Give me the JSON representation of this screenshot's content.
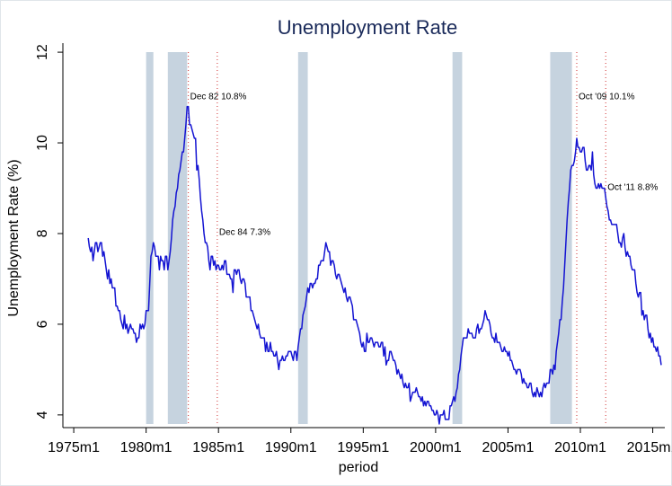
{
  "chart_data": {
    "type": "line",
    "title": "Unemployment Rate",
    "x_label": "period",
    "y_label": "Unemployment Rate (%)",
    "xlim": [
      171,
      670
    ],
    "ylim": [
      3.72,
      12.2
    ],
    "grid": false,
    "xticks": [
      {
        "value": 180,
        "label": "1975m1"
      },
      {
        "value": 240,
        "label": "1980m1"
      },
      {
        "value": 300,
        "label": "1985m1"
      },
      {
        "value": 360,
        "label": "1990m1"
      },
      {
        "value": 420,
        "label": "1995m1"
      },
      {
        "value": 480,
        "label": "2000m1"
      },
      {
        "value": 540,
        "label": "2005m1"
      },
      {
        "value": 600,
        "label": "2010m1"
      },
      {
        "value": 660,
        "label": "2015m1"
      }
    ],
    "yticks": [
      4,
      6,
      8,
      10,
      12
    ],
    "recessions": [
      [
        240,
        246
      ],
      [
        258,
        274
      ],
      [
        366,
        374
      ],
      [
        494,
        502
      ],
      [
        575,
        593
      ]
    ],
    "recession_color": "#c6d3df",
    "annotation_color": "#d03030",
    "annotations": [
      {
        "x": 275,
        "label": "Dec 82 10.8%"
      },
      {
        "x": 299,
        "label": "Dec 84 7.3%"
      },
      {
        "x": 597,
        "label": "Oct '09 10.1%"
      },
      {
        "x": 621,
        "label": "Oct '11 8.8%"
      }
    ],
    "x": [
      192,
      193,
      194,
      195,
      196,
      197,
      198,
      199,
      200,
      201,
      202,
      203,
      204,
      205,
      206,
      207,
      208,
      209,
      210,
      211,
      212,
      213,
      214,
      215,
      216,
      217,
      218,
      219,
      220,
      221,
      222,
      223,
      224,
      225,
      226,
      227,
      228,
      229,
      230,
      231,
      232,
      233,
      234,
      235,
      236,
      237,
      238,
      239,
      240,
      241,
      242,
      243,
      244,
      245,
      246,
      247,
      248,
      249,
      250,
      251,
      252,
      253,
      254,
      255,
      256,
      257,
      258,
      259,
      260,
      261,
      262,
      263,
      264,
      265,
      266,
      267,
      268,
      269,
      270,
      271,
      272,
      273,
      274,
      275,
      276,
      277,
      278,
      279,
      280,
      281,
      282,
      283,
      284,
      285,
      286,
      287,
      288,
      289,
      290,
      291,
      292,
      293,
      294,
      295,
      296,
      297,
      298,
      299,
      300,
      301,
      302,
      303,
      304,
      305,
      306,
      307,
      308,
      309,
      310,
      311,
      312,
      313,
      314,
      315,
      316,
      317,
      318,
      319,
      320,
      321,
      322,
      323,
      324,
      325,
      326,
      327,
      328,
      329,
      330,
      331,
      332,
      333,
      334,
      335,
      336,
      337,
      338,
      339,
      340,
      341,
      342,
      343,
      344,
      345,
      346,
      347,
      348,
      349,
      350,
      351,
      352,
      353,
      354,
      355,
      356,
      357,
      358,
      359,
      360,
      361,
      362,
      363,
      364,
      365,
      366,
      367,
      368,
      369,
      370,
      371,
      372,
      373,
      374,
      375,
      376,
      377,
      378,
      379,
      380,
      381,
      382,
      383,
      384,
      385,
      386,
      387,
      388,
      389,
      390,
      391,
      392,
      393,
      394,
      395,
      396,
      397,
      398,
      399,
      400,
      401,
      402,
      403,
      404,
      405,
      406,
      407,
      408,
      409,
      410,
      411,
      412,
      413,
      414,
      415,
      416,
      417,
      418,
      419,
      420,
      421,
      422,
      423,
      424,
      425,
      426,
      427,
      428,
      429,
      430,
      431,
      432,
      433,
      434,
      435,
      436,
      437,
      438,
      439,
      440,
      441,
      442,
      443,
      444,
      445,
      446,
      447,
      448,
      449,
      450,
      451,
      452,
      453,
      454,
      455,
      456,
      457,
      458,
      459,
      460,
      461,
      462,
      463,
      464,
      465,
      466,
      467,
      468,
      469,
      470,
      471,
      472,
      473,
      474,
      475,
      476,
      477,
      478,
      479,
      480,
      481,
      482,
      483,
      484,
      485,
      486,
      487,
      488,
      489,
      490,
      491,
      492,
      493,
      494,
      495,
      496,
      497,
      498,
      499,
      500,
      501,
      502,
      503,
      504,
      505,
      506,
      507,
      508,
      509,
      510,
      511,
      512,
      513,
      514,
      515,
      516,
      517,
      518,
      519,
      520,
      521,
      522,
      523,
      524,
      525,
      526,
      527,
      528,
      529,
      530,
      531,
      532,
      533,
      534,
      535,
      536,
      537,
      538,
      539,
      540,
      541,
      542,
      543,
      544,
      545,
      546,
      547,
      548,
      549,
      550,
      551,
      552,
      553,
      554,
      555,
      556,
      557,
      558,
      559,
      560,
      561,
      562,
      563,
      564,
      565,
      566,
      567,
      568,
      569,
      570,
      571,
      572,
      573,
      574,
      575,
      576,
      577,
      578,
      579,
      580,
      581,
      582,
      583,
      584,
      585,
      586,
      587,
      588,
      589,
      590,
      591,
      592,
      593,
      594,
      595,
      596,
      597,
      598,
      599,
      600,
      601,
      602,
      603,
      604,
      605,
      606,
      607,
      608,
      609,
      610,
      611,
      612,
      613,
      614,
      615,
      616,
      617,
      618,
      619,
      620,
      621,
      622,
      623,
      624,
      625,
      626,
      627,
      628,
      629,
      630,
      631,
      632,
      633,
      634,
      635,
      636,
      637,
      638,
      639,
      640,
      641,
      642,
      643,
      644,
      645,
      646,
      647,
      648,
      649,
      650,
      651,
      652,
      653,
      654,
      655,
      656,
      657,
      658,
      659,
      660,
      661,
      662,
      663,
      664,
      665,
      666,
      667
    ],
    "series": [
      {
        "name": "Unemployment Rate",
        "color": "#1414d2",
        "values": [
          7.9,
          7.7,
          7.6,
          7.7,
          7.4,
          7.6,
          7.8,
          7.8,
          7.6,
          7.7,
          7.8,
          7.8,
          7.5,
          7.6,
          7.4,
          7.2,
          7.0,
          7.2,
          6.9,
          7.0,
          6.8,
          6.8,
          6.8,
          6.4,
          6.4,
          6.3,
          6.3,
          6.1,
          6.0,
          5.9,
          6.2,
          5.9,
          6.0,
          5.8,
          5.9,
          6.0,
          5.9,
          5.9,
          5.8,
          5.8,
          5.6,
          5.7,
          5.7,
          6.0,
          5.9,
          6.0,
          5.9,
          6.0,
          6.3,
          6.3,
          6.3,
          6.9,
          7.5,
          7.6,
          7.8,
          7.7,
          7.5,
          7.5,
          7.5,
          7.2,
          7.5,
          7.4,
          7.4,
          7.2,
          7.5,
          7.5,
          7.2,
          7.4,
          7.6,
          7.9,
          8.3,
          8.5,
          8.6,
          8.9,
          9.0,
          9.3,
          9.4,
          9.6,
          9.8,
          9.8,
          10.1,
          10.4,
          10.8,
          10.8,
          10.4,
          10.4,
          10.3,
          10.2,
          10.1,
          10.1,
          9.4,
          9.5,
          9.2,
          8.8,
          8.5,
          8.3,
          8.0,
          7.8,
          7.8,
          7.7,
          7.4,
          7.2,
          7.5,
          7.5,
          7.3,
          7.4,
          7.2,
          7.3,
          7.3,
          7.2,
          7.2,
          7.3,
          7.2,
          7.4,
          7.4,
          7.1,
          7.1,
          7.1,
          7.0,
          7.0,
          6.7,
          7.2,
          7.2,
          7.1,
          7.2,
          7.2,
          7.0,
          6.9,
          7.0,
          7.0,
          6.9,
          6.6,
          6.6,
          6.6,
          6.6,
          6.3,
          6.3,
          6.2,
          6.1,
          6.0,
          5.9,
          6.0,
          5.8,
          5.7,
          5.7,
          5.7,
          5.7,
          5.4,
          5.6,
          5.4,
          5.4,
          5.6,
          5.4,
          5.4,
          5.3,
          5.3,
          5.4,
          5.2,
          5.0,
          5.2,
          5.2,
          5.3,
          5.2,
          5.2,
          5.3,
          5.3,
          5.4,
          5.4,
          5.4,
          5.3,
          5.2,
          5.4,
          5.4,
          5.2,
          5.5,
          5.7,
          5.9,
          5.9,
          6.2,
          6.3,
          6.4,
          6.6,
          6.8,
          6.7,
          6.9,
          6.9,
          6.8,
          6.9,
          6.9,
          7.0,
          7.0,
          7.3,
          7.3,
          7.4,
          7.4,
          7.4,
          7.6,
          7.8,
          7.7,
          7.6,
          7.6,
          7.3,
          7.4,
          7.4,
          7.3,
          7.1,
          7.0,
          7.1,
          7.1,
          7.0,
          6.9,
          6.8,
          6.7,
          6.8,
          6.6,
          6.5,
          6.6,
          6.6,
          6.5,
          6.4,
          6.1,
          6.1,
          6.1,
          6.0,
          5.9,
          5.8,
          5.6,
          5.5,
          5.6,
          5.4,
          5.4,
          5.8,
          5.6,
          5.6,
          5.7,
          5.7,
          5.6,
          5.5,
          5.6,
          5.6,
          5.6,
          5.5,
          5.5,
          5.6,
          5.6,
          5.3,
          5.5,
          5.1,
          5.2,
          5.2,
          5.4,
          5.4,
          5.3,
          5.2,
          5.2,
          5.1,
          4.9,
          5.0,
          4.9,
          4.8,
          4.9,
          4.7,
          4.6,
          4.7,
          4.6,
          4.6,
          4.7,
          4.3,
          4.4,
          4.5,
          4.5,
          4.5,
          4.6,
          4.5,
          4.4,
          4.4,
          4.3,
          4.4,
          4.2,
          4.3,
          4.2,
          4.3,
          4.3,
          4.2,
          4.2,
          4.1,
          4.1,
          4.0,
          4.0,
          4.1,
          4.0,
          3.8,
          4.0,
          4.0,
          4.0,
          4.1,
          3.9,
          3.9,
          3.9,
          3.9,
          4.2,
          4.2,
          4.3,
          4.4,
          4.3,
          4.5,
          4.6,
          4.9,
          5.0,
          5.3,
          5.5,
          5.7,
          5.7,
          5.7,
          5.7,
          5.9,
          5.8,
          5.8,
          5.8,
          5.7,
          5.7,
          5.7,
          5.9,
          6.0,
          5.8,
          5.9,
          5.9,
          6.0,
          6.1,
          6.3,
          6.2,
          6.1,
          6.1,
          6.0,
          5.8,
          5.7,
          5.7,
          5.6,
          5.8,
          5.6,
          5.6,
          5.6,
          5.5,
          5.4,
          5.4,
          5.5,
          5.4,
          5.4,
          5.3,
          5.4,
          5.2,
          5.2,
          5.1,
          5.0,
          5.0,
          4.9,
          5.0,
          5.0,
          5.0,
          4.9,
          4.7,
          4.8,
          4.7,
          4.7,
          4.6,
          4.6,
          4.7,
          4.7,
          4.5,
          4.4,
          4.5,
          4.4,
          4.6,
          4.5,
          4.4,
          4.5,
          4.4,
          4.6,
          4.7,
          4.6,
          4.7,
          4.7,
          4.7,
          5.0,
          5.0,
          4.9,
          5.1,
          5.0,
          5.4,
          5.6,
          5.8,
          6.1,
          6.1,
          6.5,
          6.8,
          7.3,
          7.8,
          8.3,
          8.7,
          9.0,
          9.4,
          9.5,
          9.5,
          9.6,
          9.8,
          10.1,
          9.9,
          9.9,
          9.8,
          9.8,
          9.9,
          9.9,
          9.6,
          9.4,
          9.4,
          9.5,
          9.5,
          9.4,
          9.8,
          9.3,
          9.1,
          9.0,
          9.0,
          9.1,
          9.0,
          9.1,
          9.0,
          9.0,
          9.0,
          8.8,
          8.6,
          8.5,
          8.3,
          8.3,
          8.2,
          8.2,
          8.2,
          8.2,
          8.2,
          8.0,
          7.8,
          7.8,
          7.7,
          7.9,
          8.0,
          7.7,
          7.5,
          7.6,
          7.5,
          7.5,
          7.3,
          7.2,
          7.2,
          7.2,
          6.9,
          6.7,
          6.6,
          6.7,
          6.7,
          6.2,
          6.3,
          6.1,
          6.2,
          6.2,
          5.9,
          5.7,
          5.8,
          5.6,
          5.7,
          5.5,
          5.5,
          5.4,
          5.5,
          5.3,
          5.3,
          5.1
        ]
      }
    ]
  }
}
